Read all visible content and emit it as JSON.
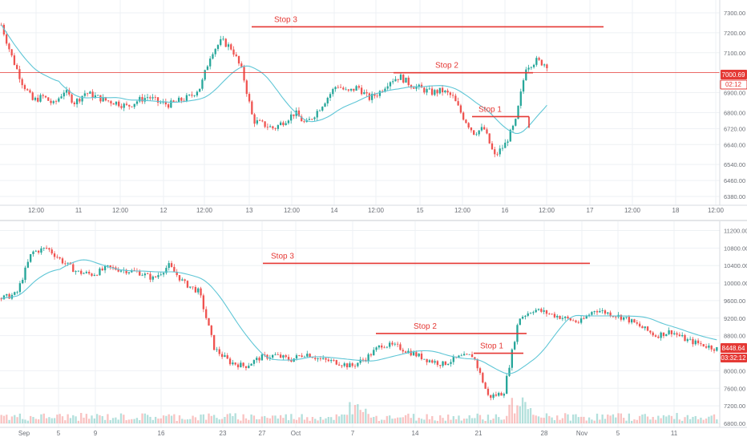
{
  "colors": {
    "up": "#26a69a",
    "down": "#ef5350",
    "ma": "#5fc6d6",
    "stop": "#e53935",
    "grid": "#eef1f4",
    "axis_text": "#6b6f76",
    "price_label_bg": "#e53935",
    "price_label_text": "#ffffff"
  },
  "chart_data": [
    {
      "type": "candlestick",
      "title": "",
      "x_tick_labels": [
        "12:00",
        "11",
        "12:00",
        "12",
        "12:00",
        "13",
        "12:00",
        "14",
        "12:00",
        "15",
        "12:00",
        "16",
        "12:00",
        "17",
        "12:00",
        "18",
        "12:00"
      ],
      "y_tick_labels": [
        "7300.00",
        "7200.00",
        "7100.00",
        "6900.00",
        "6800.00",
        "6720.00",
        "6640.00",
        "6540.00",
        "6460.00",
        "6380.00"
      ],
      "ylim": [
        6360,
        7340
      ],
      "last_price": "7000.69",
      "countdown": "02:12",
      "stops": [
        {
          "label": "Stop 3",
          "price": 7230
        },
        {
          "label": "Stop 2",
          "price": 7000
        },
        {
          "label": "Stop 1",
          "price": 6780
        }
      ],
      "series_close_approx": [
        7240,
        7080,
        6950,
        6860,
        6880,
        6840,
        6910,
        6850,
        6900,
        6880,
        6860,
        6850,
        6830,
        6860,
        6880,
        6850,
        6840,
        6860,
        6880,
        6930,
        7100,
        7160,
        7120,
        7000,
        6760,
        6740,
        6720,
        6760,
        6800,
        6740,
        6800,
        6870,
        6940,
        6900,
        6930,
        6870,
        6900,
        6960,
        6980,
        6940,
        6920,
        6900,
        6910,
        6880,
        6780,
        6700,
        6720,
        6580,
        6640,
        6750,
        7030,
        7060,
        7040
      ]
    },
    {
      "type": "candlestick",
      "title": "",
      "x_tick_labels": [
        "Sep",
        "5",
        "9",
        "16",
        "23",
        "27",
        "Oct",
        "7",
        "14",
        "21",
        "28",
        "Nov",
        "5",
        "11"
      ],
      "y_tick_labels": [
        "11200.00",
        "10800.00",
        "10400.00",
        "10000.00",
        "9600.00",
        "9200.00",
        "8800.00",
        "8000.00",
        "7600.00",
        "7200.00",
        "6800.00"
      ],
      "ylim": [
        6800,
        11300
      ],
      "last_price": "8448.64",
      "countdown": "03:32:12",
      "stops": [
        {
          "label": "Stop 3",
          "price": 10450
        },
        {
          "label": "Stop 2",
          "price": 8850
        },
        {
          "label": "Stop 1",
          "price": 8400
        }
      ],
      "series_close_approx": [
        9650,
        9750,
        10700,
        10800,
        10500,
        10250,
        10200,
        10350,
        10300,
        10250,
        10100,
        10400,
        10000,
        9800,
        8500,
        8200,
        8100,
        8300,
        8350,
        8250,
        8400,
        8250,
        8200,
        8100,
        8300,
        8600,
        8550,
        8400,
        8250,
        8150,
        8300,
        8350,
        7400,
        7500,
        9200,
        9400,
        9300,
        9200,
        9100,
        9400,
        9300,
        9200,
        9000,
        8800,
        8900,
        8700,
        8600,
        8500
      ]
    }
  ]
}
